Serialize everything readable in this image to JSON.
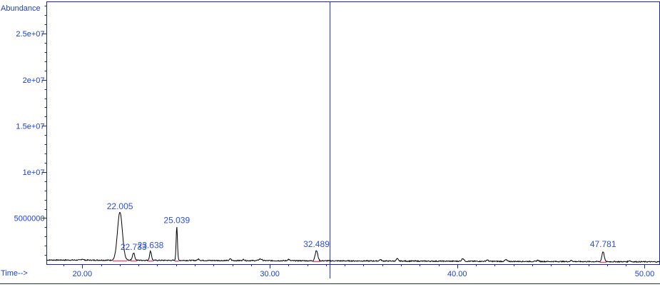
{
  "chart_data": {
    "type": "line",
    "title": "",
    "ylabel": "Abundance",
    "xlabel": "Time-->",
    "xlim": [
      18.1,
      50.8
    ],
    "ylim": [
      0,
      28500000
    ],
    "x_ticks": [
      {
        "value": 20,
        "label": "20.00"
      },
      {
        "value": 30,
        "label": "30.00"
      },
      {
        "value": 40,
        "label": "40.00"
      },
      {
        "value": 50,
        "label": "50.00"
      }
    ],
    "y_ticks": [
      {
        "value": 5000000,
        "label": "5000000"
      },
      {
        "value": 10000000,
        "label": "1e+07"
      },
      {
        "value": 15000000,
        "label": "1.5e+07"
      },
      {
        "value": 20000000,
        "label": "2e+07"
      },
      {
        "value": 25000000,
        "label": "2.5e+07"
      }
    ],
    "cursor_x": 33.2,
    "baseline_level": 450000,
    "series": [
      {
        "peaks": [
          {
            "rt": 22.005,
            "label": "22.005",
            "height": 5200000,
            "width": 0.13
          },
          {
            "rt": 22.733,
            "label": "22.733",
            "height": 800000,
            "width": 0.06
          },
          {
            "rt": 23.638,
            "label": "23.638",
            "height": 1000000,
            "width": 0.05
          },
          {
            "rt": 25.039,
            "label": "25.039",
            "height": 3700000,
            "width": 0.035
          },
          {
            "rt": 32.489,
            "label": "32.489",
            "height": 1100000,
            "width": 0.07
          },
          {
            "rt": 47.781,
            "label": "47.781",
            "height": 1100000,
            "width": 0.06
          }
        ]
      }
    ]
  }
}
